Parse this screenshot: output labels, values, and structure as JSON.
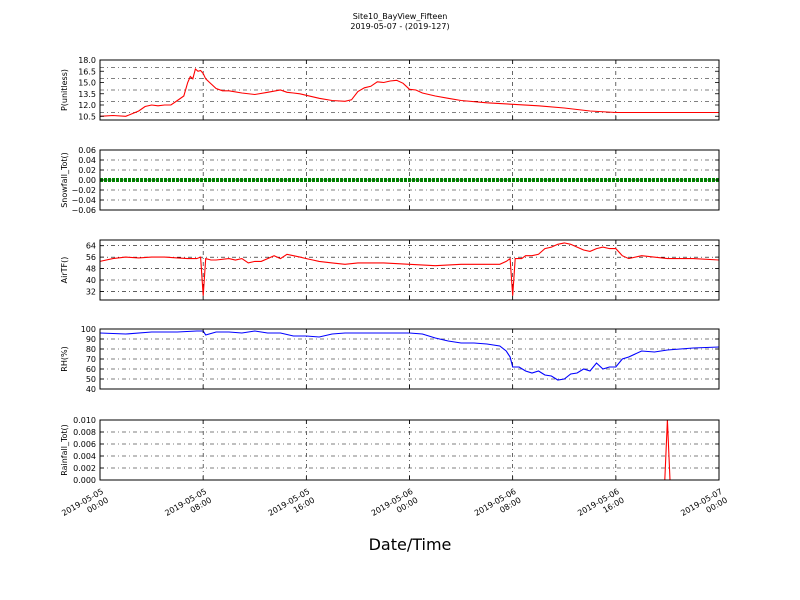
{
  "figure": {
    "title": "Site10_BayView_Fifteen",
    "subtitle": "2019-05-07 - (2019-127)",
    "xlabel": "Date/Time"
  },
  "chart_data": [
    {
      "type": "line",
      "ylabel": "P(unitless)",
      "color": "#ff0000",
      "ylim": [
        10.0,
        18.0
      ],
      "yticks": [
        10.5,
        12.0,
        13.5,
        15.0,
        16.5,
        18.0
      ],
      "ytick_labels": [
        "10.5",
        "12.0",
        "13.5",
        "15.0",
        "16.5",
        "18.0"
      ],
      "ygrid": [
        11.0,
        12.5,
        14.0,
        15.5,
        17.0
      ],
      "x": [
        0,
        1,
        2,
        3,
        3.5,
        4,
        4.5,
        5,
        5.5,
        6,
        6.5,
        6.8,
        7,
        7.2,
        7.4,
        7.6,
        7.8,
        8,
        8.2,
        8.5,
        9,
        9.5,
        10,
        11,
        12,
        13,
        14,
        14.5,
        15,
        15.5,
        16,
        17,
        18,
        19,
        19.5,
        20,
        20.5,
        21,
        21.5,
        22,
        22.5,
        23,
        23.5,
        24,
        24.5,
        25,
        26,
        27,
        28,
        30,
        32,
        34,
        36,
        38,
        40,
        42,
        44,
        46,
        48
      ],
      "values": [
        10.5,
        10.6,
        10.5,
        11.2,
        11.8,
        12.0,
        11.9,
        12.0,
        12.0,
        12.6,
        13.2,
        15.0,
        15.8,
        15.5,
        16.8,
        16.5,
        16.6,
        16.2,
        15.5,
        15.0,
        14.2,
        13.9,
        13.9,
        13.6,
        13.4,
        13.7,
        14.0,
        13.7,
        13.6,
        13.5,
        13.3,
        12.9,
        12.6,
        12.5,
        12.7,
        13.8,
        14.3,
        14.5,
        15.1,
        15.0,
        15.2,
        15.3,
        14.9,
        14.1,
        14.0,
        13.6,
        13.2,
        12.9,
        12.6,
        12.3,
        12.1,
        11.9,
        11.6,
        11.2,
        11.0,
        11.0,
        11.0,
        11.0,
        11.0
      ]
    },
    {
      "type": "line",
      "ylabel": "Snowfall_Tot()",
      "color": "#008000",
      "ylim": [
        -0.06,
        0.06
      ],
      "yticks": [
        -0.06,
        -0.04,
        -0.02,
        0.0,
        0.02,
        0.04,
        0.06
      ],
      "ytick_labels": [
        "−0.06",
        "−0.04",
        "−0.02",
        "0.00",
        "0.02",
        "0.04",
        "0.06"
      ],
      "ygrid": [
        -0.04,
        -0.02,
        0.0,
        0.02,
        0.04
      ],
      "x": [
        0,
        48
      ],
      "values": [
        0,
        0
      ]
    },
    {
      "type": "line",
      "ylabel": "AirTF()",
      "color": "#ff0000",
      "ylim": [
        26,
        68
      ],
      "yticks": [
        32,
        40,
        48,
        56,
        64
      ],
      "ytick_labels": [
        "32",
        "40",
        "48",
        "56",
        "64"
      ],
      "ygrid": [
        32,
        40,
        48,
        56,
        64
      ],
      "x": [
        0,
        1,
        2,
        3,
        4,
        5,
        6,
        6.8,
        7.5,
        7.8,
        8,
        8.2,
        8.6,
        9,
        10,
        10.5,
        11,
        11.5,
        12,
        12.5,
        13,
        13.5,
        14,
        14.5,
        15,
        15.5,
        16,
        16.5,
        17,
        18,
        19,
        20,
        22,
        24,
        26,
        28,
        30,
        31,
        31.5,
        31.8,
        32,
        32.2,
        32.7,
        33,
        33.5,
        34,
        34.5,
        35,
        35.5,
        36,
        36.5,
        37,
        37.5,
        38,
        38.5,
        39,
        39.5,
        40,
        40.5,
        41,
        42,
        44,
        46,
        48
      ],
      "values": [
        53,
        55,
        56,
        55.5,
        56,
        56,
        55.5,
        55,
        55,
        56,
        29,
        55,
        54,
        54,
        55,
        54,
        55,
        52,
        53,
        53,
        55,
        57,
        55,
        58,
        57,
        56,
        55,
        54,
        53,
        52,
        51,
        52,
        52,
        51,
        50,
        51,
        51,
        51,
        53,
        55,
        29,
        55,
        55,
        57,
        57,
        58,
        62,
        63,
        65,
        66,
        65,
        63,
        61,
        60,
        62,
        63,
        62,
        62,
        57,
        55,
        57,
        55,
        55,
        54
      ]
    },
    {
      "type": "line",
      "ylabel": "RH(%)",
      "color": "#0000ff",
      "ylim": [
        40,
        100
      ],
      "yticks": [
        40,
        50,
        60,
        70,
        80,
        90,
        100
      ],
      "ytick_labels": [
        "40",
        "50",
        "60",
        "70",
        "80",
        "90",
        "100"
      ],
      "ygrid": [
        50,
        60,
        70,
        80,
        90
      ],
      "x": [
        0,
        2,
        4,
        6,
        7.5,
        8,
        8.2,
        9,
        10,
        11,
        12,
        13,
        14,
        15,
        16,
        17,
        18,
        19,
        20,
        22,
        24,
        25,
        26,
        27,
        28,
        29,
        30,
        31,
        31.5,
        31.8,
        32,
        32.5,
        33,
        33.5,
        34,
        34.5,
        35,
        35.5,
        36,
        36.5,
        37,
        37.5,
        38,
        38.5,
        39,
        39.5,
        40,
        40.5,
        41,
        42,
        43,
        44,
        46,
        48
      ],
      "values": [
        96,
        95,
        97,
        97,
        98,
        98,
        94,
        97,
        97,
        96,
        98,
        96,
        96,
        93,
        93,
        92,
        95,
        96,
        96,
        96,
        96,
        95,
        91,
        88,
        86,
        86,
        85,
        83,
        78,
        72,
        62,
        62,
        58,
        56,
        58,
        54,
        53,
        49,
        50,
        55,
        56,
        60,
        58,
        66,
        60,
        62,
        62,
        70,
        72,
        78,
        77,
        79,
        81,
        82
      ]
    },
    {
      "type": "line",
      "ylabel": "Rainfall_Tot()",
      "color": "#ff0000",
      "ylim": [
        0,
        0.01
      ],
      "yticks": [
        0,
        0.002,
        0.004,
        0.006,
        0.008,
        0.01
      ],
      "ytick_labels": [
        "0.000",
        "0.002",
        "0.004",
        "0.006",
        "0.008",
        "0.010"
      ],
      "ygrid": [
        0.002,
        0.004,
        0.006,
        0.008
      ],
      "x": [
        0,
        43.8,
        44,
        44.2,
        48
      ],
      "values": [
        0,
        0,
        0.01,
        0,
        0
      ]
    }
  ],
  "x_axis": {
    "range_hours": [
      0,
      48
    ],
    "tick_hours": [
      0,
      8,
      16,
      24,
      32,
      40,
      48
    ],
    "tick_labels": [
      [
        "2019-05-05",
        "00:00"
      ],
      [
        "2019-05-05",
        "08:00"
      ],
      [
        "2019-05-05",
        "16:00"
      ],
      [
        "2019-05-06",
        "00:00"
      ],
      [
        "2019-05-06",
        "08:00"
      ],
      [
        "2019-05-06",
        "16:00"
      ],
      [
        "2019-05-07",
        "00:00"
      ]
    ]
  }
}
